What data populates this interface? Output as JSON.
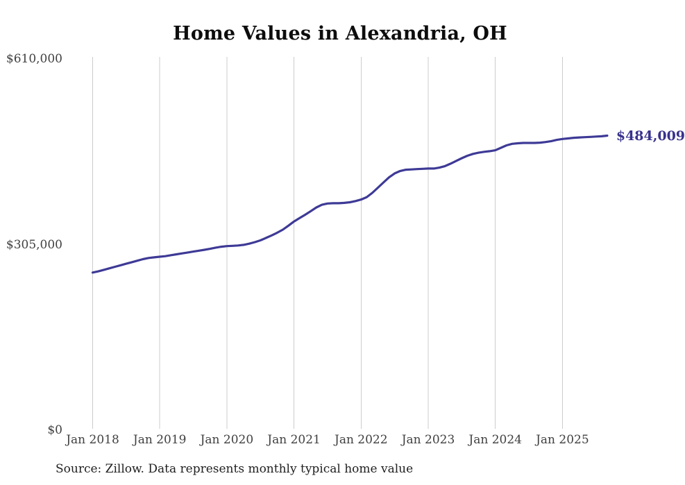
{
  "title": "Home Values in Alexandria, OH",
  "source_note": "Source: Zillow. Data represents monthly typical home value",
  "end_label": "$484,009",
  "colors": {
    "line": "#3e3a96",
    "end_label": "#38328c",
    "gridline": "#cccccc",
    "tick_text": "#404040",
    "title_text": "#0d0d0d"
  },
  "chart_data": {
    "type": "line",
    "title": "Home Values in Alexandria, OH",
    "series_name": "Monthly typical home value",
    "x_start": "2018-01",
    "x_end": "2025-09",
    "x_tick_labels": [
      "Jan 2018",
      "Jan 2019",
      "Jan 2020",
      "Jan 2021",
      "Jan 2022",
      "Jan 2023",
      "Jan 2024",
      "Jan 2025"
    ],
    "y_ticks": [
      {
        "label": "$0",
        "value": 0
      },
      {
        "label": "$305,000",
        "value": 305000
      },
      {
        "label": "$610,000",
        "value": 610000
      }
    ],
    "ylim": [
      0,
      610000
    ],
    "grid": "vertical-only",
    "legend": "none",
    "final_value": 484009,
    "final_value_label": "$484,009",
    "values": [
      259000,
      261000,
      263500,
      266000,
      268500,
      271000,
      273500,
      276000,
      278500,
      281000,
      283000,
      284000,
      285000,
      286000,
      287500,
      289000,
      290500,
      292000,
      293500,
      295000,
      296500,
      298000,
      300000,
      301500,
      302500,
      303000,
      303500,
      304500,
      306500,
      309000,
      312000,
      316000,
      320000,
      324500,
      329500,
      336000,
      343000,
      348500,
      354000,
      360000,
      366000,
      370500,
      372500,
      373000,
      373000,
      373500,
      374500,
      376500,
      379000,
      383000,
      390000,
      398500,
      407000,
      415500,
      422000,
      426000,
      428000,
      428500,
      429000,
      429500,
      430000,
      430000,
      431500,
      434000,
      438000,
      442500,
      447000,
      451000,
      454000,
      456000,
      457500,
      458500,
      460000,
      464000,
      468000,
      470500,
      471500,
      472000,
      472000,
      472000,
      472500,
      473500,
      475000,
      477000,
      478500,
      479500,
      480500,
      481000,
      481500,
      482000,
      482500,
      483000,
      484009
    ]
  }
}
